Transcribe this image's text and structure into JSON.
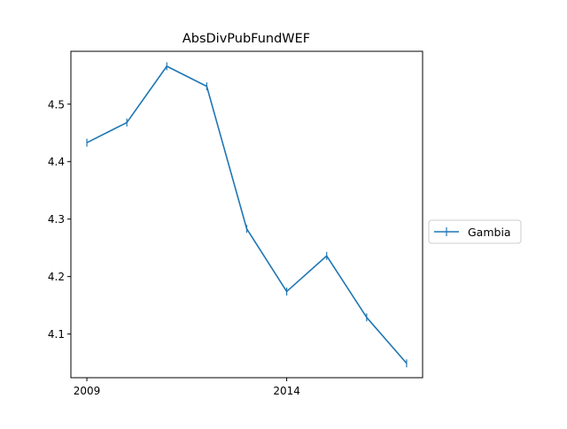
{
  "chart_data": {
    "type": "line",
    "title": "AbsDivPubFundWEF",
    "xlabel": "",
    "ylabel": "",
    "x": [
      2009,
      2010,
      2011,
      2012,
      2013,
      2014,
      2015,
      2016,
      2017
    ],
    "x_ticks": [
      2009,
      2014
    ],
    "x_tick_labels": [
      "2009",
      "2014"
    ],
    "xlim": [
      2008.6,
      2017.4
    ],
    "y_ticks": [
      4.1,
      4.2,
      4.3,
      4.4,
      4.5
    ],
    "y_tick_labels": [
      "4.1",
      "4.2",
      "4.3",
      "4.4",
      "4.5"
    ],
    "ylim": [
      4.024,
      4.592
    ],
    "grid": false,
    "legend_position": "right, outside plot",
    "series": [
      {
        "name": "Gambia",
        "color": "#1f77b4",
        "marker": "vertical tick",
        "values": [
          4.433,
          4.468,
          4.566,
          4.531,
          4.283,
          4.174,
          4.236,
          4.129,
          4.049
        ]
      }
    ]
  }
}
